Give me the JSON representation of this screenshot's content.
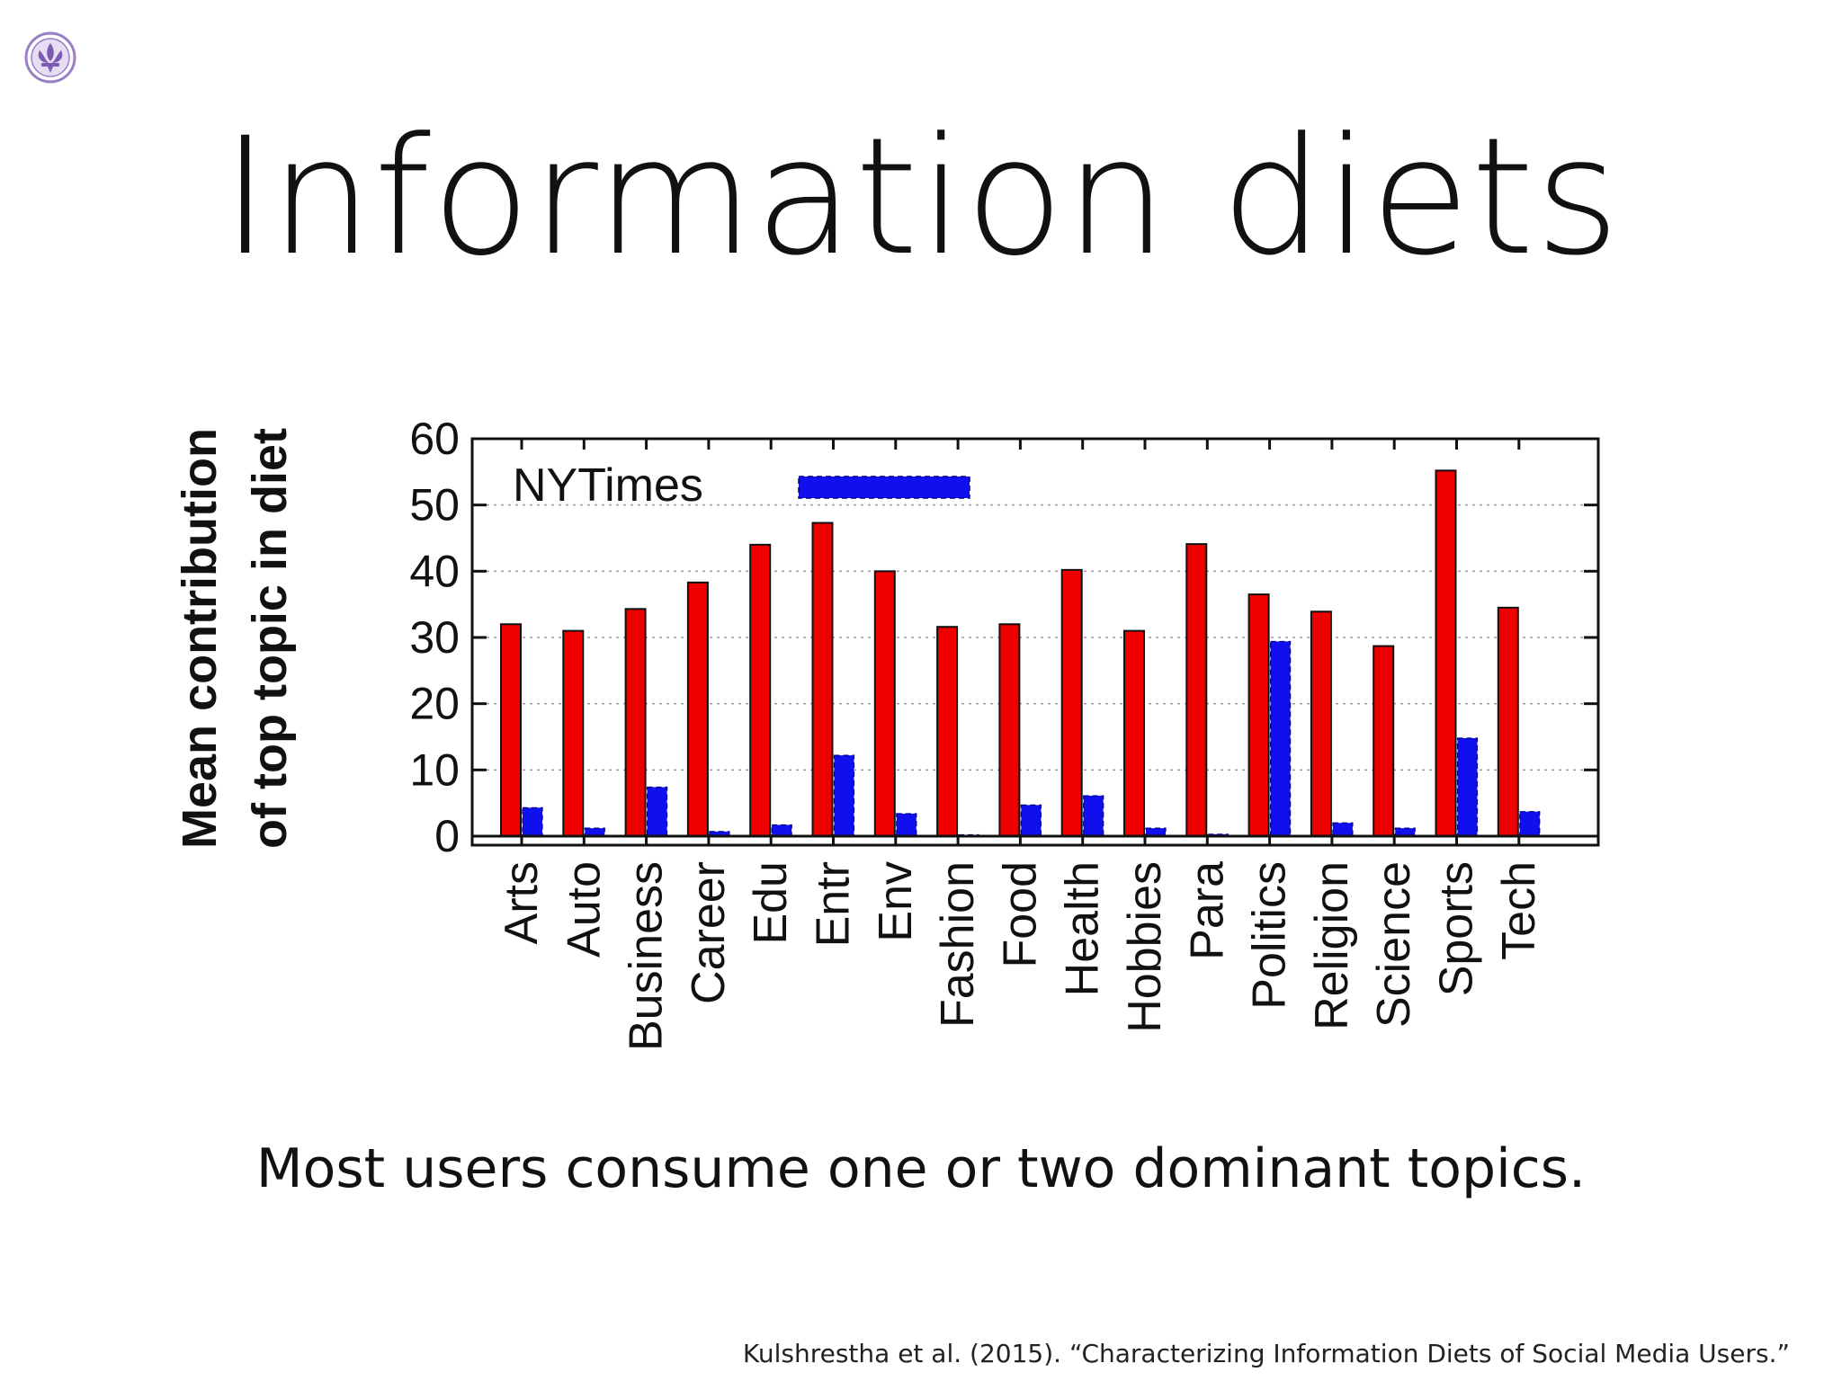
{
  "slide": {
    "title": "Information diets",
    "subtitle": "Most users consume one or two dominant topics.",
    "citation": "Kulshrestha et al. (2015). “Characterizing Information Diets of Social Media Users.”",
    "logo_icon": "fleur-de-lis-seal-icon"
  },
  "chart_data": {
    "type": "bar",
    "title": "",
    "xlabel": "",
    "ylabel": "Mean contribution of top topic in diet",
    "ylabel_lines": [
      "Mean contribution",
      "of top topic in diet"
    ],
    "ylim": [
      0,
      60
    ],
    "yticks": [
      0,
      10,
      20,
      30,
      40,
      50,
      60
    ],
    "grid": true,
    "legend_placement": "top-left",
    "categories": [
      "Arts",
      "Auto",
      "Business",
      "Career",
      "Edu",
      "Entr",
      "Env",
      "Fashion",
      "Food",
      "Health",
      "Hobbies",
      "Para",
      "Politics",
      "Religion",
      "Science",
      "Sports",
      "Tech"
    ],
    "series": [
      {
        "color": "#ee0000",
        "values": [
          32,
          31,
          34.3,
          38.3,
          44,
          47.3,
          40,
          31.6,
          32,
          40.2,
          31,
          44.1,
          36.5,
          33.9,
          28.7,
          55.2,
          34.5
        ]
      },
      {
        "name": "NYTimes",
        "color": "#1010ee",
        "values": [
          4.3,
          1.2,
          7.4,
          0.7,
          1.7,
          12.2,
          3.4,
          0.2,
          4.7,
          6.1,
          1.2,
          0.3,
          29.4,
          2.0,
          1.2,
          14.8,
          3.7
        ]
      }
    ]
  }
}
